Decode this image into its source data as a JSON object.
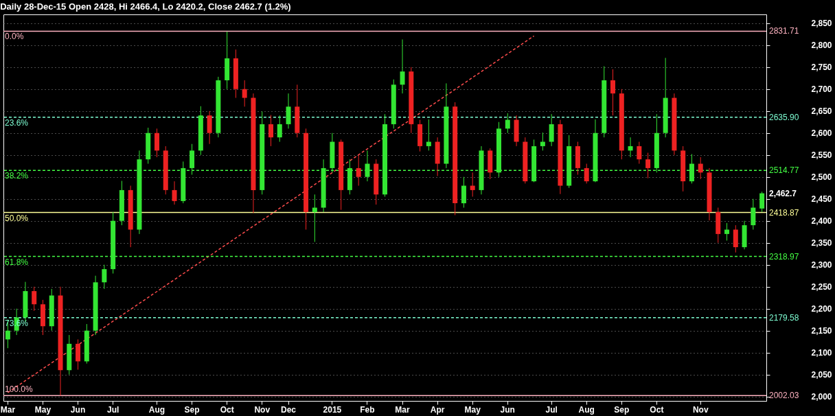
{
  "chart_data": {
    "type": "candlestick",
    "title": "Daily 28-Dec-15 Open 2428, Hi 2466.4, Lo 2420.2, Close 2462.7 (1.2%)",
    "categories": [
      "Mar",
      null,
      null,
      null,
      "May",
      null,
      null,
      null,
      "Jun",
      null,
      null,
      null,
      "Jul",
      null,
      null,
      null,
      null,
      "Aug",
      null,
      null,
      null,
      "Sep",
      null,
      null,
      null,
      "Oct",
      null,
      null,
      null,
      "Nov",
      null,
      null,
      "Dec",
      null,
      null,
      null,
      null,
      "2015",
      null,
      null,
      null,
      "Feb",
      null,
      null,
      null,
      "Mar",
      null,
      null,
      null,
      "Apr",
      null,
      null,
      null,
      "May",
      null,
      null,
      null,
      "Jun",
      null,
      null,
      null,
      null,
      "Jul",
      null,
      null,
      null,
      "Aug",
      null,
      null,
      null,
      "Sep",
      null,
      null,
      null,
      "Oct",
      null,
      null,
      null,
      null,
      "Nov",
      null,
      null,
      null,
      null,
      null,
      null,
      null
    ],
    "ohlc": [
      [
        2130,
        2175,
        2110,
        2150
      ],
      [
        2150,
        2200,
        2140,
        2180
      ],
      [
        2180,
        2261,
        2170,
        2240
      ],
      [
        2240,
        2250,
        2195,
        2210
      ],
      [
        2210,
        2220,
        2140,
        2160
      ],
      [
        2160,
        2245,
        2150,
        2230
      ],
      [
        2230,
        2250,
        2002,
        2060
      ],
      [
        2060,
        2140,
        2050,
        2120
      ],
      [
        2120,
        2130,
        2061,
        2080
      ],
      [
        2080,
        2165,
        2075,
        2150
      ],
      [
        2150,
        2275,
        2140,
        2260
      ],
      [
        2260,
        2300,
        2245,
        2290
      ],
      [
        2290,
        2420,
        2280,
        2400
      ],
      [
        2400,
        2491,
        2390,
        2470
      ],
      [
        2470,
        2480,
        2340,
        2380
      ],
      [
        2380,
        2560,
        2370,
        2540
      ],
      [
        2540,
        2612,
        2530,
        2600
      ],
      [
        2600,
        2610,
        2545,
        2560
      ],
      [
        2560,
        2570,
        2460,
        2470
      ],
      [
        2470,
        2490,
        2437,
        2445
      ],
      [
        2445,
        2535,
        2440,
        2520
      ],
      [
        2520,
        2575,
        2505,
        2560
      ],
      [
        2560,
        2661,
        2550,
        2640
      ],
      [
        2640,
        2650,
        2575,
        2600
      ],
      [
        2600,
        2728,
        2590,
        2720
      ],
      [
        2720,
        2831,
        2700,
        2770
      ],
      [
        2770,
        2790,
        2680,
        2700
      ],
      [
        2700,
        2720,
        2660,
        2680
      ],
      [
        2680,
        2690,
        2418,
        2470
      ],
      [
        2470,
        2649,
        2460,
        2620
      ],
      [
        2620,
        2641,
        2570,
        2590
      ],
      [
        2590,
        2640,
        2580,
        2620
      ],
      [
        2620,
        2690,
        2610,
        2660
      ],
      [
        2660,
        2710,
        2590,
        2600
      ],
      [
        2600,
        2610,
        2380,
        2420
      ],
      [
        2420,
        2460,
        2352,
        2430
      ],
      [
        2430,
        2540,
        2420,
        2520
      ],
      [
        2520,
        2600,
        2510,
        2580
      ],
      [
        2580,
        2585,
        2425,
        2470
      ],
      [
        2470,
        2540,
        2460,
        2520
      ],
      [
        2520,
        2550,
        2480,
        2500
      ],
      [
        2500,
        2560,
        2490,
        2530
      ],
      [
        2530,
        2540,
        2437,
        2460
      ],
      [
        2460,
        2643,
        2455,
        2620
      ],
      [
        2620,
        2722,
        2610,
        2710
      ],
      [
        2710,
        2813,
        2690,
        2740
      ],
      [
        2740,
        2750,
        2600,
        2620
      ],
      [
        2620,
        2630,
        2558,
        2570
      ],
      [
        2570,
        2631,
        2560,
        2580
      ],
      [
        2580,
        2590,
        2502,
        2530
      ],
      [
        2530,
        2713,
        2520,
        2660
      ],
      [
        2660,
        2670,
        2413,
        2440
      ],
      [
        2440,
        2500,
        2430,
        2480
      ],
      [
        2480,
        2510,
        2455,
        2470
      ],
      [
        2470,
        2570,
        2460,
        2560
      ],
      [
        2560,
        2565,
        2495,
        2510
      ],
      [
        2510,
        2625,
        2500,
        2610
      ],
      [
        2610,
        2645,
        2600,
        2630
      ],
      [
        2630,
        2640,
        2570,
        2580
      ],
      [
        2580,
        2590,
        2485,
        2490
      ],
      [
        2490,
        2585,
        2488,
        2570
      ],
      [
        2570,
        2601,
        2560,
        2580
      ],
      [
        2580,
        2643,
        2570,
        2620
      ],
      [
        2620,
        2630,
        2461,
        2480
      ],
      [
        2480,
        2595,
        2475,
        2570
      ],
      [
        2570,
        2580,
        2505,
        2520
      ],
      [
        2520,
        2530,
        2485,
        2490
      ],
      [
        2490,
        2631,
        2488,
        2600
      ],
      [
        2600,
        2752,
        2590,
        2720
      ],
      [
        2720,
        2745,
        2640,
        2690
      ],
      [
        2690,
        2700,
        2540,
        2560
      ],
      [
        2560,
        2590,
        2545,
        2570
      ],
      [
        2570,
        2580,
        2530,
        2540
      ],
      [
        2540,
        2555,
        2497,
        2520
      ],
      [
        2520,
        2643,
        2510,
        2600
      ],
      [
        2600,
        2771,
        2590,
        2680
      ],
      [
        2680,
        2690,
        2550,
        2560
      ],
      [
        2560,
        2570,
        2467,
        2490
      ],
      [
        2490,
        2552,
        2485,
        2530
      ],
      [
        2530,
        2545,
        2495,
        2510
      ],
      [
        2510,
        2520,
        2401,
        2420
      ],
      [
        2420,
        2430,
        2350,
        2370
      ],
      [
        2370,
        2395,
        2355,
        2380
      ],
      [
        2380,
        2390,
        2328,
        2340
      ],
      [
        2340,
        2400,
        2335,
        2390
      ],
      [
        2390,
        2450,
        2380,
        2430
      ],
      [
        2428,
        2466.4,
        2420.2,
        2462.7
      ]
    ],
    "colors": [
      "#33e633",
      "#33e633",
      "#33e633",
      "#ee2222",
      "#ee2222",
      "#33e633",
      "#ee2222",
      "#33e633",
      "#ee2222",
      "#33e633",
      "#33e633",
      "#33e633",
      "#33e633",
      "#33e633",
      "#ee2222",
      "#33e633",
      "#33e633",
      "#ee2222",
      "#ee2222",
      "#ee2222",
      "#33e633",
      "#33e633",
      "#33e633",
      "#ee2222",
      "#33e633",
      "#33e633",
      "#ee2222",
      "#ee2222",
      "#ee2222",
      "#33e633",
      "#ee2222",
      "#33e633",
      "#33e633",
      "#ee2222",
      "#ee2222",
      "#33e633",
      "#33e633",
      "#33e633",
      "#ee2222",
      "#33e633",
      "#ee2222",
      "#33e633",
      "#ee2222",
      "#33e633",
      "#33e633",
      "#33e633",
      "#ee2222",
      "#ee2222",
      "#33e633",
      "#ee2222",
      "#33e633",
      "#ee2222",
      "#33e633",
      "#ee2222",
      "#33e633",
      "#ee2222",
      "#33e633",
      "#33e633",
      "#ee2222",
      "#ee2222",
      "#33e633",
      "#33e633",
      "#33e633",
      "#ee2222",
      "#33e633",
      "#ee2222",
      "#ee2222",
      "#33e633",
      "#33e633",
      "#ee2222",
      "#ee2222",
      "#33e633",
      "#ee2222",
      "#ee2222",
      "#33e633",
      "#33e633",
      "#ee2222",
      "#ee2222",
      "#33e633",
      "#ee2222",
      "#ee2222",
      "#ee2222",
      "#33e633",
      "#ee2222",
      "#33e633",
      "#33e633",
      "#33e633"
    ],
    "series": [
      {
        "type": "line",
        "color": "#ff4d4d",
        "line_style": "dashed",
        "values": [
          2009,
          null,
          null,
          null,
          null,
          null,
          null,
          null,
          null,
          null,
          null,
          null,
          null,
          null,
          null,
          null,
          null,
          null,
          null,
          null,
          null,
          null,
          null,
          null,
          null,
          null,
          null,
          null,
          null,
          null,
          null,
          null,
          null,
          null,
          null,
          null,
          null,
          null,
          null,
          null,
          null,
          null,
          null,
          null,
          null,
          null,
          null,
          null,
          null,
          null,
          null,
          null,
          null,
          null,
          null,
          null,
          null,
          null,
          null,
          null,
          2821,
          null,
          null,
          null,
          null,
          null,
          null,
          null,
          null,
          null,
          null,
          null,
          null,
          null,
          null,
          null,
          null,
          null,
          null,
          null,
          null,
          null,
          null,
          null,
          null,
          null,
          null
        ]
      }
    ],
    "ylim": [
      1990,
      2870
    ],
    "yticks": [
      {
        "value": 2000,
        "label": "2,000"
      },
      {
        "value": 2050,
        "label": "2,050"
      },
      {
        "value": 2100,
        "label": "2,100"
      },
      {
        "value": 2150,
        "label": "2,150"
      },
      {
        "value": 2200,
        "label": "2,200"
      },
      {
        "value": 2250,
        "label": "2,250"
      },
      {
        "value": 2300,
        "label": "2,300"
      },
      {
        "value": 2350,
        "label": "2,350"
      },
      {
        "value": 2400,
        "label": "2,400"
      },
      {
        "value": 2450,
        "label": "2,450"
      },
      {
        "value": 2500,
        "label": "2,500"
      },
      {
        "value": 2550,
        "label": "2,550"
      },
      {
        "value": 2600,
        "label": "2,600"
      },
      {
        "value": 2650,
        "label": "2,650"
      },
      {
        "value": 2700,
        "label": "2,700"
      },
      {
        "value": 2750,
        "label": "2,750"
      },
      {
        "value": 2800,
        "label": "2,800"
      },
      {
        "value": 2850,
        "label": "2,850"
      }
    ],
    "grid": "y",
    "ref_lines": [
      {
        "axis": "y",
        "value": 2831.71,
        "label": "2831.71",
        "color": "#ffb3c1",
        "line_style": "solid"
      },
      {
        "axis": "y",
        "value": 2635.9,
        "label": "2635.90",
        "color": "#7fffd4",
        "line_style": "dashed"
      },
      {
        "axis": "y",
        "value": 2514.77,
        "label": "2514.77",
        "color": "#44ff44",
        "line_style": "dashed"
      },
      {
        "axis": "y",
        "value": 2418.87,
        "label": "2418.87",
        "color": "#ffff99",
        "line_style": "solid"
      },
      {
        "axis": "y",
        "value": 2318.97,
        "label": "2318.97",
        "color": "#44ff44",
        "line_style": "dashed"
      },
      {
        "axis": "y",
        "value": 2179.58,
        "label": "2179.58",
        "color": "#7fffd4",
        "line_style": "dashed"
      },
      {
        "axis": "y",
        "value": 2002.03,
        "label": "2002.03",
        "color": "#ffb3c1",
        "line_style": "solid"
      }
    ],
    "annotations": [
      "0.0%",
      "23.6%",
      "38.2%",
      "50.0%",
      "61.8%",
      "73.6%",
      "100.0%",
      "2,462.7"
    ]
  }
}
